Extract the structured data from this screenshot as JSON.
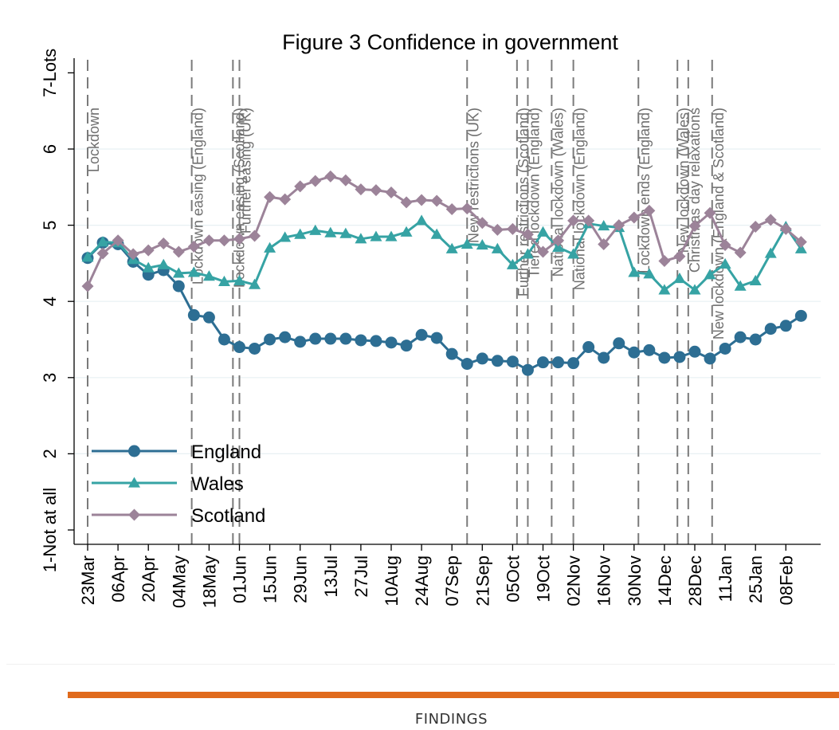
{
  "chart_data": {
    "type": "line",
    "title": "Figure 3 Confidence in government",
    "xlabel": "",
    "ylabel": "",
    "ylim": [
      1,
      7
    ],
    "y_ticks": [
      {
        "value": 1,
        "label": "1-Not at all"
      },
      {
        "value": 2,
        "label": "2"
      },
      {
        "value": 3,
        "label": "3"
      },
      {
        "value": 4,
        "label": "4"
      },
      {
        "value": 5,
        "label": "5"
      },
      {
        "value": 6,
        "label": "6"
      },
      {
        "value": 7,
        "label": "7-Lots"
      }
    ],
    "x_tick_labels": [
      "23Mar",
      "06Apr",
      "20Apr",
      "04May",
      "18May",
      "01Jun",
      "15Jun",
      "29Jun",
      "13Jul",
      "27Jul",
      "10Aug",
      "24Aug",
      "07Sep",
      "21Sep",
      "05Oct",
      "19Oct",
      "02Nov",
      "16Nov",
      "30Nov",
      "14Dec",
      "28Dec",
      "11Jan",
      "25Jan",
      "08Feb"
    ],
    "grid": true,
    "legend_position": "bottom-left",
    "x": [
      "23Mar",
      "30Mar",
      "06Apr",
      "13Apr",
      "20Apr",
      "27Apr",
      "04May",
      "11May",
      "18May",
      "25May",
      "31May",
      "07Jun",
      "15Jun",
      "22Jun",
      "29Jun",
      "06Jul",
      "13Jul",
      "20Jul",
      "27Jul",
      "03Aug",
      "10Aug",
      "17Aug",
      "24Aug",
      "31Aug",
      "07Sep",
      "14Sep",
      "21Sep",
      "28Sep",
      "05Oct",
      "12Oct",
      "19Oct",
      "26Oct",
      "02Nov",
      "09Nov",
      "16Nov",
      "23Nov",
      "30Nov",
      "07Dec",
      "14Dec",
      "21Dec",
      "28Dec",
      "04Jan",
      "11Jan",
      "18Jan",
      "25Jan",
      "01Feb",
      "08Feb",
      "15Feb"
    ],
    "series": [
      {
        "name": "England",
        "color": "#2d6e93",
        "marker": "circle",
        "values": [
          4.57,
          4.77,
          4.75,
          4.52,
          4.35,
          4.41,
          4.2,
          3.82,
          3.79,
          3.5,
          3.4,
          3.38,
          3.5,
          3.53,
          3.47,
          3.51,
          3.51,
          3.51,
          3.49,
          3.48,
          3.46,
          3.42,
          3.56,
          3.52,
          3.31,
          3.18,
          3.25,
          3.22,
          3.21,
          3.1,
          3.2,
          3.2,
          3.19,
          3.4,
          3.26,
          3.45,
          3.33,
          3.36,
          3.26,
          3.27,
          3.34,
          3.25,
          3.38,
          3.53,
          3.5,
          3.64,
          3.68,
          3.81
        ]
      },
      {
        "name": "Wales",
        "color": "#36a3a4",
        "marker": "triangle",
        "values": [
          4.58,
          4.78,
          4.77,
          4.55,
          4.44,
          4.48,
          4.37,
          4.38,
          4.33,
          4.26,
          4.27,
          4.22,
          4.7,
          4.84,
          4.88,
          4.93,
          4.9,
          4.89,
          4.82,
          4.85,
          4.85,
          4.91,
          5.06,
          4.88,
          4.69,
          4.75,
          4.74,
          4.69,
          4.48,
          4.62,
          4.91,
          4.71,
          4.62,
          5.02,
          4.99,
          4.97,
          4.38,
          4.36,
          4.15,
          4.3,
          4.15,
          4.35,
          4.49,
          4.2,
          4.27,
          4.63,
          4.98,
          4.69
        ]
      },
      {
        "name": "Scotland",
        "color": "#9c8399",
        "marker": "diamond",
        "values": [
          4.2,
          4.63,
          4.8,
          4.62,
          4.67,
          4.76,
          4.65,
          4.72,
          4.8,
          4.8,
          4.82,
          4.86,
          5.37,
          5.34,
          5.51,
          5.58,
          5.64,
          5.59,
          5.47,
          5.46,
          5.43,
          5.3,
          5.33,
          5.32,
          5.21,
          5.22,
          5.03,
          4.94,
          4.95,
          4.88,
          4.65,
          4.8,
          5.06,
          5.06,
          4.75,
          5.0,
          5.1,
          5.19,
          4.53,
          4.59,
          4.99,
          5.16,
          4.74,
          4.64,
          4.98,
          5.07,
          4.95,
          4.78
        ]
      }
    ],
    "events": [
      {
        "date": "23Mar",
        "label": "Lockdown"
      },
      {
        "date": "10May",
        "label": "Lockdown easing (England)"
      },
      {
        "date": "29May",
        "label": "Lockdown easing (Scotland)"
      },
      {
        "date": "01Jun",
        "label": "Further easing (UK)"
      },
      {
        "date": "14Sep",
        "label": "New restrictions (UK)"
      },
      {
        "date": "07Oct",
        "label": "Further restrictions (Scotland)"
      },
      {
        "date": "12Oct",
        "label": "Tiered lockdown (England)"
      },
      {
        "date": "23Oct",
        "label": "National lockdown (Wales)"
      },
      {
        "date": "02Nov",
        "label": "National lockdown (England)"
      },
      {
        "date": "02Dec",
        "label": "Lockdown ends (England)"
      },
      {
        "date": "20Dec",
        "label": "New lockdown (Wales)"
      },
      {
        "date": "25Dec",
        "label": "Christmas day relaxations"
      },
      {
        "date": "05Jan",
        "label": "New lockdown (England & Scotland)"
      }
    ]
  },
  "footer": {
    "section_label": "FINDINGS"
  }
}
